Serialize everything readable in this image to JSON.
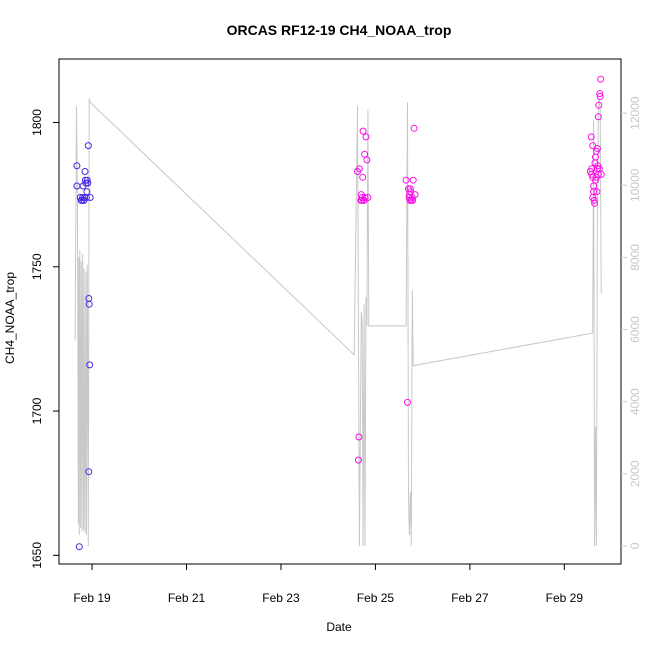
{
  "chart_data": {
    "type": "scatter",
    "title": "ORCAS RF12-19 CH4_NOAA_trop",
    "xlabel": "Date",
    "ylabel": "CH4_NOAA_trop",
    "x_ticks": [
      "Feb 19",
      "Feb 21",
      "Feb 23",
      "Feb 25",
      "Feb 27",
      "Feb 29"
    ],
    "x_tick_days": [
      19,
      21,
      23,
      25,
      27,
      29
    ],
    "xlim_days": [
      18.3,
      30.2
    ],
    "ylim": [
      1647,
      1822
    ],
    "y_ticks": [
      1650,
      1700,
      1750,
      1800
    ],
    "y2_ticks": [
      0,
      2000,
      4000,
      6000,
      8000,
      10000,
      12000
    ],
    "y2lim": [
      -500,
      13500
    ],
    "grid": false,
    "colors": {
      "early": "#3f2ae6",
      "late": "#ff10e8",
      "altitude": "#c8c8c8"
    },
    "series": [
      {
        "points": [
          [
            18.68,
            1785
          ],
          [
            18.68,
            1778
          ],
          [
            18.73,
            1653
          ],
          [
            18.75,
            1774
          ],
          [
            18.77,
            1773
          ],
          [
            18.8,
            1774
          ],
          [
            18.82,
            1773
          ],
          [
            18.84,
            1774
          ],
          [
            18.85,
            1783
          ],
          [
            18.86,
            1780
          ],
          [
            18.87,
            1779
          ],
          [
            18.88,
            1774
          ],
          [
            18.89,
            1776
          ],
          [
            18.9,
            1780
          ],
          [
            18.91,
            1779
          ],
          [
            18.92,
            1792
          ],
          [
            18.93,
            1739
          ],
          [
            18.94,
            1737
          ],
          [
            18.95,
            1716
          ],
          [
            18.93,
            1679
          ],
          [
            18.96,
            1774
          ],
          [
            18.78,
            1773
          ],
          [
            18.83,
            1773
          ],
          [
            18.81,
            1778
          ]
        ]
      },
      {
        "points": [
          [
            24.62,
            1783
          ],
          [
            24.65,
            1691
          ],
          [
            24.64,
            1683
          ],
          [
            24.66,
            1784
          ],
          [
            24.7,
            1775
          ],
          [
            24.72,
            1774
          ],
          [
            24.74,
            1797
          ],
          [
            24.75,
            1773
          ],
          [
            24.76,
            1773
          ],
          [
            24.77,
            1789
          ],
          [
            24.8,
            1795
          ],
          [
            24.82,
            1787
          ],
          [
            24.84,
            1774
          ],
          [
            24.71,
            1773
          ],
          [
            24.78,
            1774
          ],
          [
            24.73,
            1781
          ],
          [
            24.69,
            1773
          ],
          [
            25.65,
            1780
          ],
          [
            25.68,
            1703
          ],
          [
            25.7,
            1777
          ],
          [
            25.72,
            1775
          ],
          [
            25.74,
            1777
          ],
          [
            25.76,
            1773
          ],
          [
            25.78,
            1774
          ],
          [
            25.8,
            1780
          ],
          [
            25.82,
            1798
          ],
          [
            25.84,
            1775
          ],
          [
            25.73,
            1773
          ],
          [
            25.79,
            1773
          ],
          [
            25.75,
            1776
          ],
          [
            25.71,
            1774
          ],
          [
            29.55,
            1783
          ],
          [
            29.57,
            1795
          ],
          [
            29.58,
            1784
          ],
          [
            29.6,
            1792
          ],
          [
            29.6,
            1774
          ],
          [
            29.62,
            1778
          ],
          [
            29.63,
            1773
          ],
          [
            29.64,
            1772
          ],
          [
            29.65,
            1786
          ],
          [
            29.66,
            1788
          ],
          [
            29.68,
            1790
          ],
          [
            29.68,
            1781
          ],
          [
            29.7,
            1791
          ],
          [
            29.71,
            1785
          ],
          [
            29.72,
            1802
          ],
          [
            29.73,
            1806
          ],
          [
            29.75,
            1810
          ],
          [
            29.76,
            1809
          ],
          [
            29.77,
            1815
          ],
          [
            29.74,
            1784
          ],
          [
            29.78,
            1782
          ],
          [
            29.66,
            1780
          ],
          [
            29.69,
            1776
          ],
          [
            29.62,
            1776
          ],
          [
            29.6,
            1781
          ],
          [
            29.58,
            1782
          ],
          [
            29.7,
            1784
          ],
          [
            29.72,
            1782
          ]
        ]
      },
      {
        "axis": "right",
        "points": [
          [
            18.64,
            5700
          ],
          [
            18.67,
            12200
          ],
          [
            18.69,
            9800
          ],
          [
            18.71,
            600
          ],
          [
            18.72,
            8000
          ],
          [
            18.73,
            300
          ],
          [
            18.74,
            8200
          ],
          [
            18.76,
            500
          ],
          [
            18.77,
            7900
          ],
          [
            18.79,
            400
          ],
          [
            18.8,
            8100
          ],
          [
            18.82,
            450
          ],
          [
            18.83,
            7700
          ],
          [
            18.85,
            350
          ],
          [
            18.87,
            7600
          ],
          [
            18.88,
            300
          ],
          [
            18.9,
            7800
          ],
          [
            18.92,
            0
          ],
          [
            18.94,
            12400
          ],
          [
            18.96,
            12300
          ],
          [
            24.55,
            5300
          ],
          [
            24.62,
            12200
          ],
          [
            24.66,
            0
          ],
          [
            24.7,
            6500
          ],
          [
            24.72,
            6200
          ],
          [
            24.74,
            0
          ],
          [
            24.76,
            6700
          ],
          [
            24.78,
            0
          ],
          [
            24.8,
            6900
          ],
          [
            24.82,
            6100
          ],
          [
            24.84,
            12100
          ],
          [
            24.86,
            6100
          ],
          [
            25.65,
            6100
          ],
          [
            25.68,
            12300
          ],
          [
            25.7,
            1300
          ],
          [
            25.72,
            300
          ],
          [
            25.74,
            1500
          ],
          [
            25.76,
            0
          ],
          [
            25.78,
            7100
          ],
          [
            25.8,
            5000
          ],
          [
            29.6,
            5900
          ],
          [
            29.62,
            11800
          ],
          [
            29.64,
            0
          ],
          [
            29.66,
            3300
          ],
          [
            29.68,
            0
          ],
          [
            29.7,
            9100
          ],
          [
            29.72,
            12000
          ],
          [
            29.74,
            12400
          ],
          [
            29.76,
            12100
          ],
          [
            29.78,
            7000
          ]
        ]
      }
    ]
  }
}
